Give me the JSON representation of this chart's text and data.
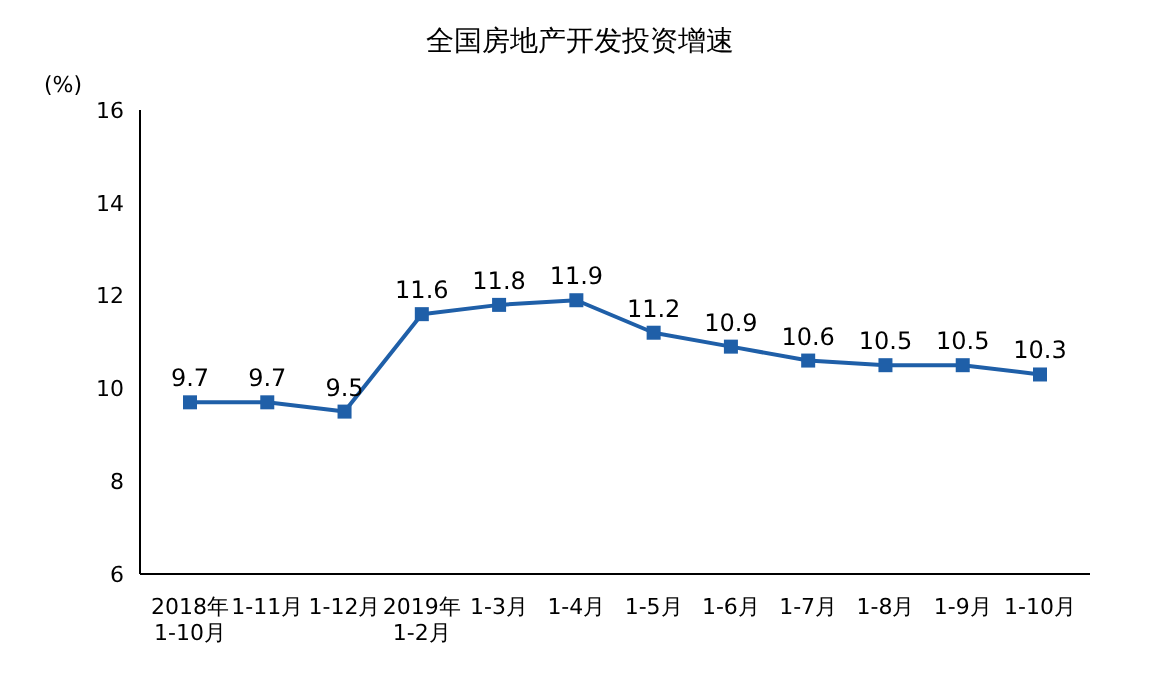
{
  "chart_data": {
    "type": "line",
    "title": "全国房地产开发投资增速",
    "ylabel": "(%)",
    "categories": [
      "2018年\n1-10月",
      "1-11月",
      "1-12月",
      "2019年\n1-2月",
      "1-3月",
      "1-4月",
      "1-5月",
      "1-6月",
      "1-7月",
      "1-8月",
      "1-9月",
      "1-10月"
    ],
    "series": [
      {
        "color": "#1f5fa8",
        "values": [
          9.7,
          9.7,
          9.5,
          11.6,
          11.8,
          11.9,
          11.2,
          10.9,
          10.6,
          10.5,
          10.5,
          10.3
        ]
      }
    ],
    "ylim": [
      6,
      16
    ],
    "yticks": [
      6,
      8,
      10,
      12,
      14,
      16
    ],
    "marker": "square",
    "data_labels": true,
    "legend": false,
    "grid": false
  }
}
